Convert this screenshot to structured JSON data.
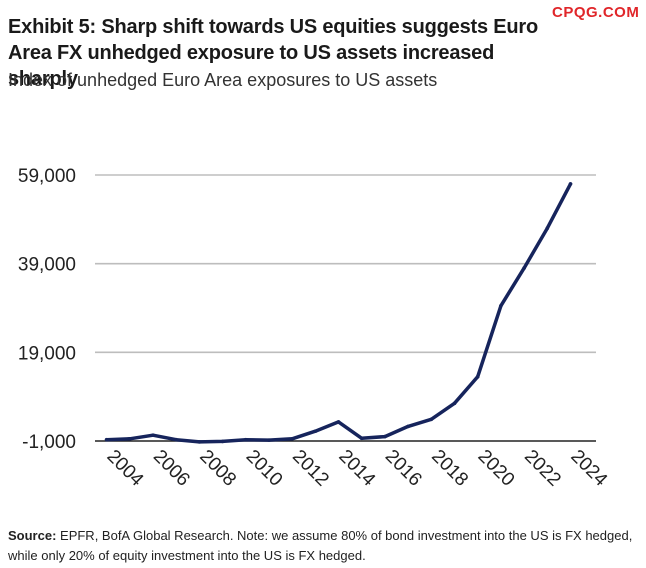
{
  "header": {
    "title": "Exhibit 5: Sharp shift towards US equities suggests Euro Area FX unhedged exposure to US assets increased sharply",
    "subtitle": "Index of unhedged Euro Area exposures to US assets",
    "watermark": "CPQG.COM"
  },
  "footer": {
    "source_label": "Source:",
    "source_text": " EPFR, BofA Global Research. Note: we assume 80% of bond investment into the US is FX hedged, while only 20% of equity investment into the US is FX hedged."
  },
  "colors": {
    "line": "#16245c",
    "grid": "#bdbdbd",
    "baseline": "#222222",
    "watermark": "#e0262a"
  },
  "chart_data": {
    "type": "line",
    "x": [
      2003.5,
      2004.5,
      2005.5,
      2006.5,
      2007.5,
      2008.5,
      2009.5,
      2010.5,
      2011.5,
      2012.5,
      2013.5,
      2014.5,
      2015.5,
      2016.5,
      2017.5,
      2018.5,
      2019.5,
      2020.5,
      2021.5,
      2022.5,
      2023.5
    ],
    "values": [
      -700,
      -500,
      300,
      -700,
      -1200,
      -1100,
      -700,
      -800,
      -500,
      1200,
      3300,
      -400,
      0,
      2300,
      3900,
      7500,
      13500,
      29500,
      38000,
      47000,
      57000
    ],
    "x_ticks": [
      2004,
      2006,
      2008,
      2010,
      2012,
      2014,
      2016,
      2018,
      2020,
      2022,
      2024
    ],
    "x_tick_labels": [
      "2004",
      "2006",
      "2008",
      "2010",
      "2012",
      "2014",
      "2016",
      "2018",
      "2020",
      "2022",
      "2024"
    ],
    "y_ticks": [
      -1000,
      19000,
      39000,
      59000
    ],
    "y_tick_labels": [
      "-1,000",
      "19,000",
      "39,000",
      "59,000"
    ],
    "xlim": [
      2003,
      2024.6
    ],
    "ylim": [
      -1000,
      59000
    ],
    "grid": true,
    "title": "",
    "xlabel": "",
    "ylabel": ""
  }
}
